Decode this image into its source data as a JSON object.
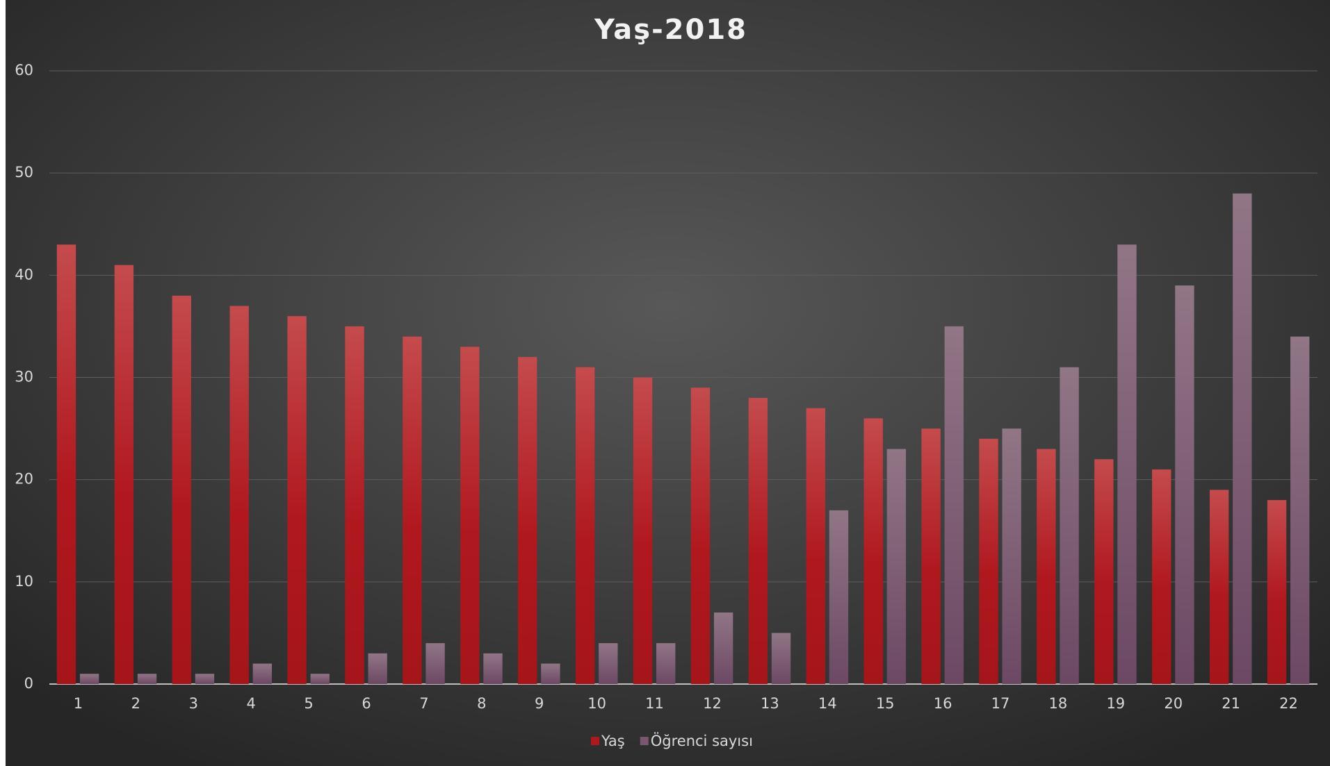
{
  "chart_data": {
    "type": "bar",
    "title": "Yaş-2018",
    "categories": [
      "1",
      "2",
      "3",
      "4",
      "5",
      "6",
      "7",
      "8",
      "9",
      "10",
      "11",
      "12",
      "13",
      "14",
      "15",
      "16",
      "17",
      "18",
      "19",
      "20",
      "21",
      "22"
    ],
    "series": [
      {
        "name": "Yaş",
        "color": "#b0181e",
        "values": [
          43,
          41,
          38,
          37,
          36,
          35,
          34,
          33,
          32,
          31,
          30,
          29,
          28,
          27,
          26,
          25,
          24,
          23,
          22,
          21,
          19,
          18
        ]
      },
      {
        "name": "Öğrenci sayısı",
        "color": "#7a566f",
        "values": [
          1,
          1,
          1,
          2,
          1,
          3,
          4,
          3,
          2,
          4,
          4,
          7,
          5,
          17,
          23,
          35,
          25,
          31,
          43,
          39,
          48,
          34
        ]
      }
    ],
    "ylim": [
      0,
      60
    ],
    "yticks": [
      0,
      10,
      20,
      30,
      40,
      50,
      60
    ],
    "grid": true,
    "legend": "bottom"
  }
}
